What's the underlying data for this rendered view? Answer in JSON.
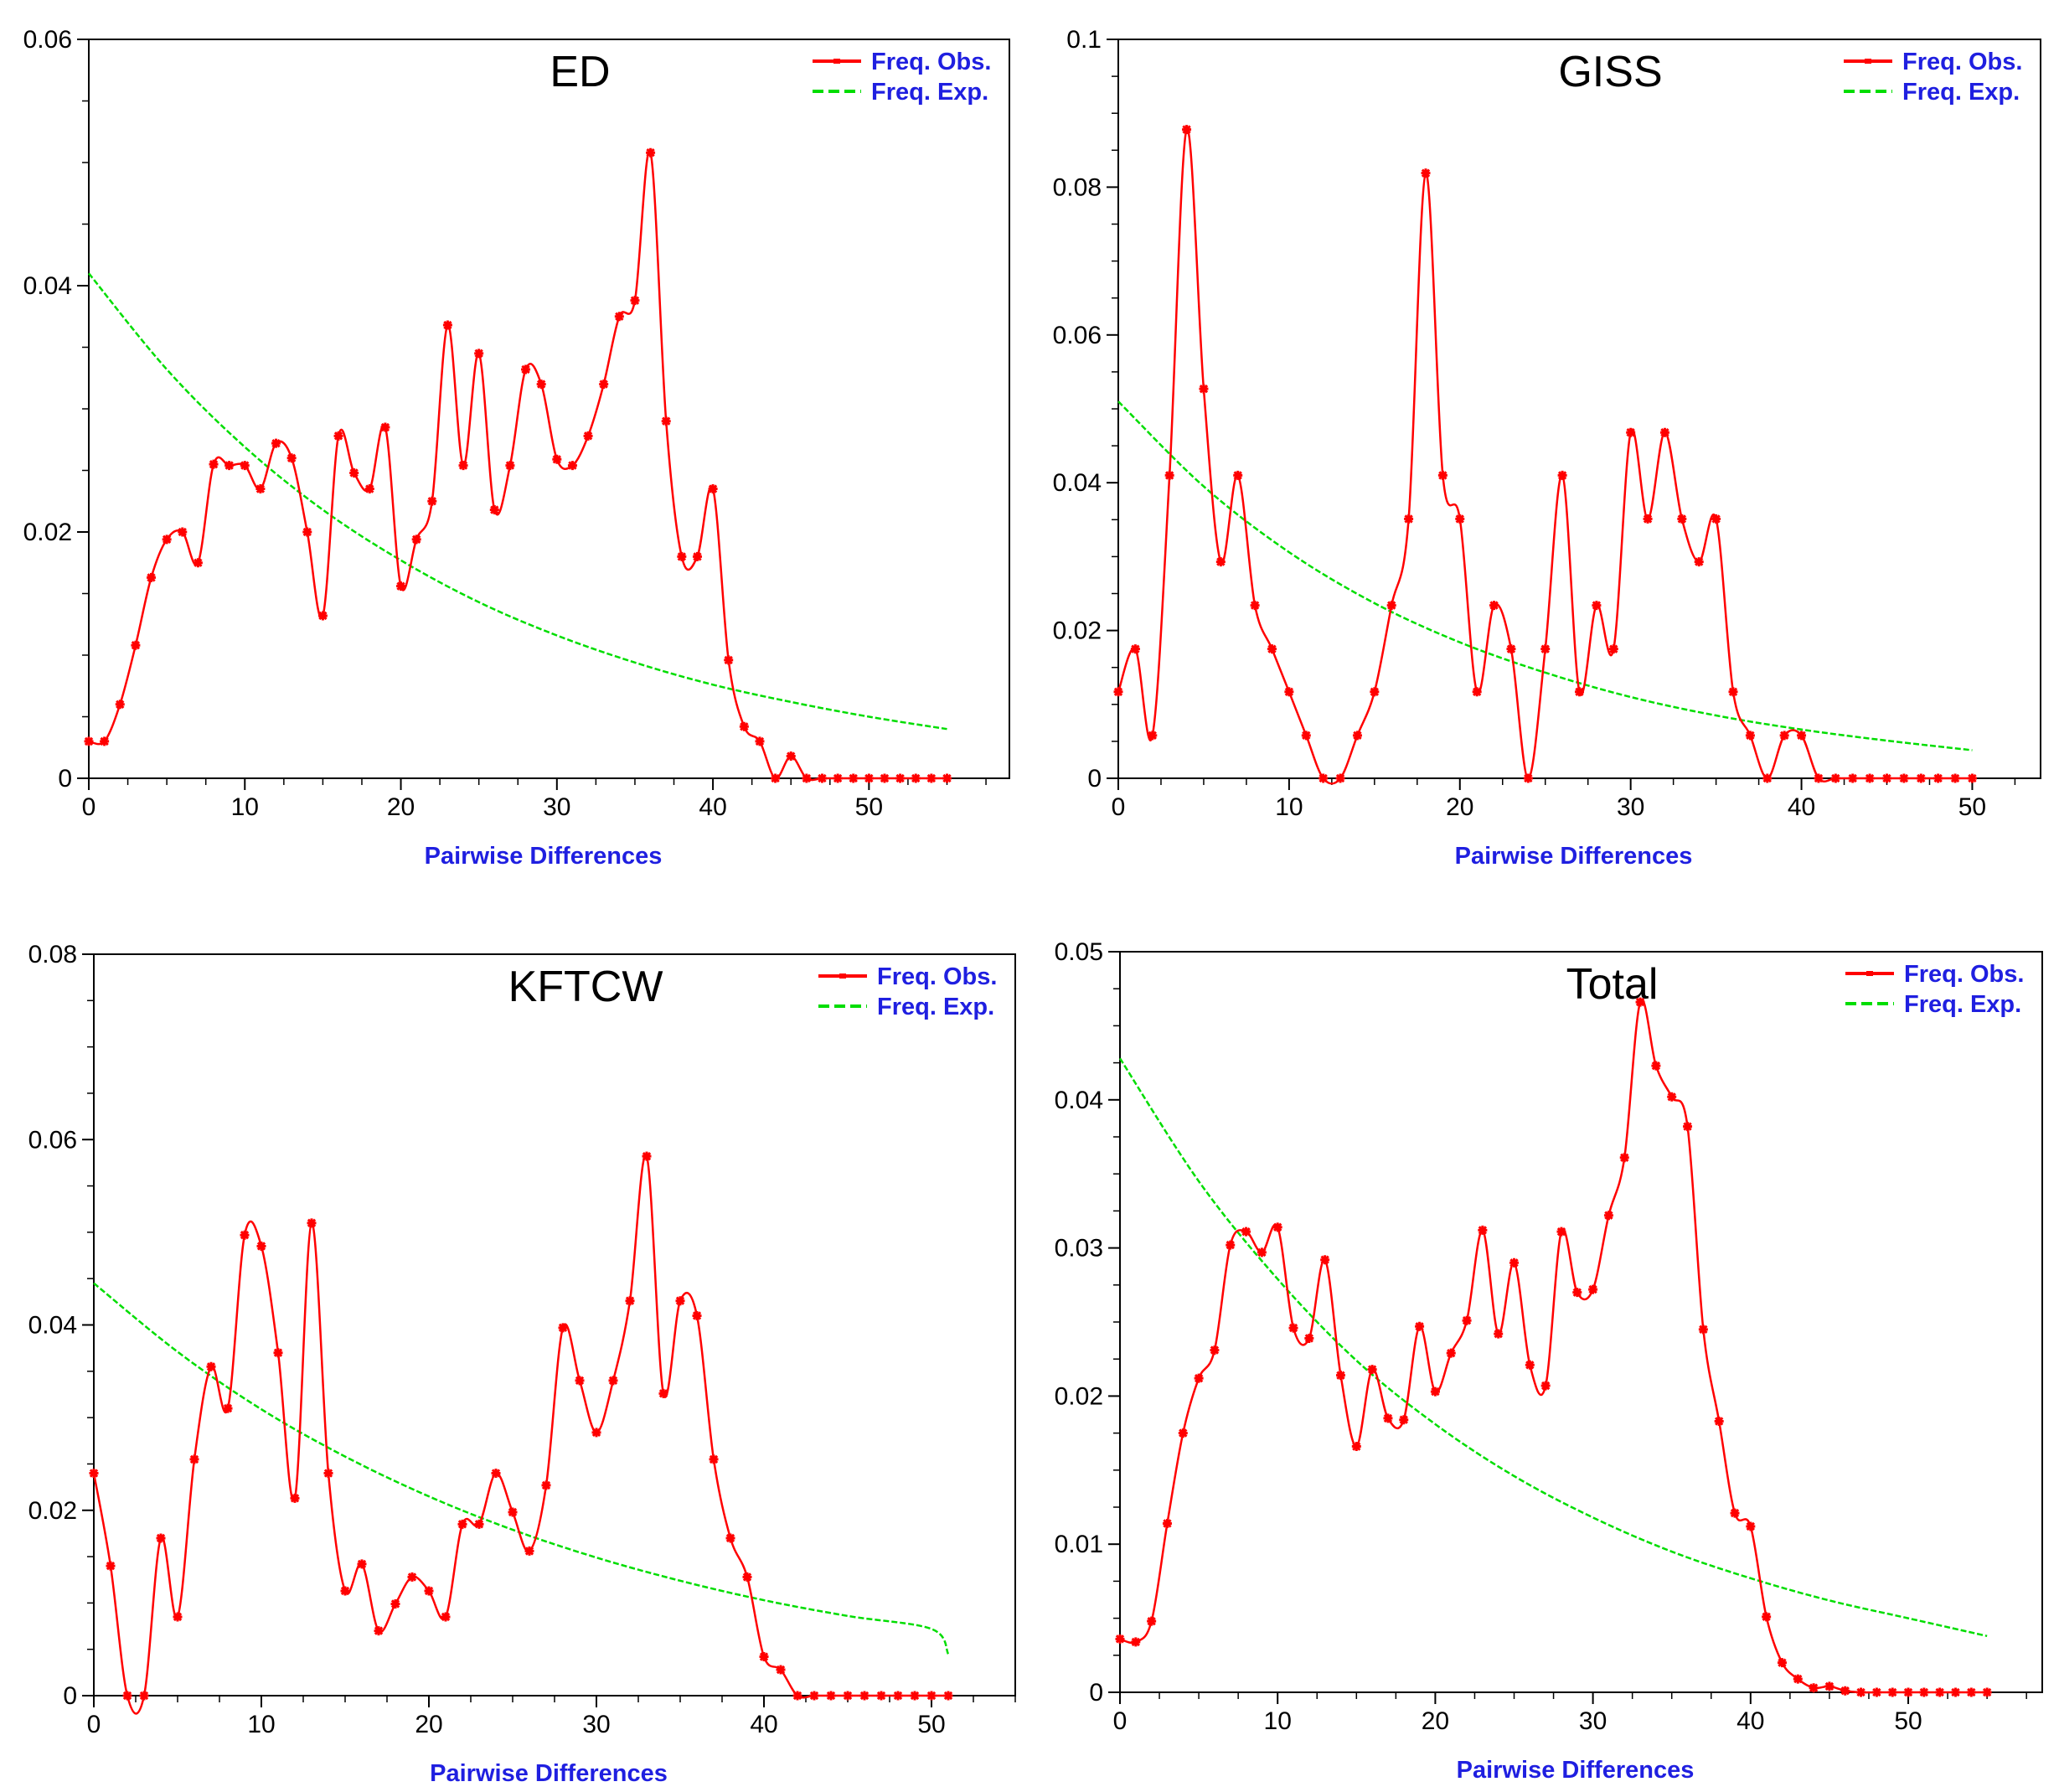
{
  "colors": {
    "observed": "#ff0000",
    "expected": "#00dd00",
    "axis_label": "#1f1fe0",
    "legend_text": "#1f1fe0",
    "axes": "#000000"
  },
  "chart_data": [
    {
      "type": "line",
      "title": "ED",
      "xlabel": "Pairwise Differences",
      "ylabel": "",
      "xlim": [
        0,
        59
      ],
      "ylim": [
        0,
        0.06
      ],
      "xticks": [
        0,
        10,
        20,
        30,
        40,
        50
      ],
      "xtick_labels": [
        "0",
        "10",
        "20",
        "30",
        "40",
        "50"
      ],
      "yticks": [
        0,
        0.02,
        0.04,
        0.06
      ],
      "ytick_labels": [
        "0",
        "0.02",
        "0.04",
        "0.06"
      ],
      "legend": [
        "Freq. Obs.",
        "Freq. Exp."
      ],
      "legend_position": "top-right",
      "series": [
        {
          "name": "Freq. Obs.",
          "x": [
            0,
            1,
            2,
            3,
            4,
            5,
            6,
            7,
            8,
            9,
            10,
            11,
            12,
            13,
            14,
            15,
            16,
            17,
            18,
            19,
            20,
            21,
            22,
            23,
            24,
            25,
            26,
            27,
            28,
            29,
            30,
            31,
            32,
            33,
            34,
            35,
            36,
            37,
            38,
            39,
            40,
            41,
            42,
            43,
            44,
            45,
            46,
            47,
            48,
            49,
            50,
            51,
            52,
            53,
            54,
            55
          ],
          "y": [
            0.003,
            0.003,
            0.006,
            0.0108,
            0.0163,
            0.0194,
            0.02,
            0.0175,
            0.0255,
            0.0254,
            0.0254,
            0.0235,
            0.0272,
            0.026,
            0.02,
            0.0132,
            0.0278,
            0.0248,
            0.0235,
            0.0285,
            0.0156,
            0.0194,
            0.0225,
            0.0368,
            0.0254,
            0.0345,
            0.0218,
            0.0254,
            0.0332,
            0.032,
            0.0259,
            0.0254,
            0.0278,
            0.032,
            0.0375,
            0.0388,
            0.0508,
            0.029,
            0.018,
            0.018,
            0.0235,
            0.0096,
            0.0042,
            0.003,
            0,
            0.0018,
            0,
            0,
            0,
            0,
            0,
            0,
            0,
            0,
            0,
            0
          ]
        },
        {
          "name": "Freq. Exp.",
          "x": [
            0,
            5,
            10,
            15,
            20,
            25,
            30,
            35,
            40,
            45,
            50,
            55
          ],
          "y": [
            0.041,
            0.0332,
            0.0269,
            0.0218,
            0.0177,
            0.0143,
            0.0116,
            0.0094,
            0.0076,
            0.0062,
            0.005,
            0.004
          ]
        }
      ]
    },
    {
      "type": "line",
      "title": "GISS",
      "xlabel": "Pairwise Differences",
      "ylabel": "",
      "xlim": [
        0,
        54
      ],
      "ylim": [
        0,
        0.1
      ],
      "xticks": [
        0,
        10,
        20,
        30,
        40,
        50
      ],
      "xtick_labels": [
        "0",
        "10",
        "20",
        "30",
        "40",
        "50"
      ],
      "yticks": [
        0,
        0.02,
        0.04,
        0.06,
        0.08,
        0.1
      ],
      "ytick_labels": [
        "0",
        "0.02",
        "0.04",
        "0.06",
        "0.08",
        "0.1"
      ],
      "legend": [
        "Freq. Obs.",
        "Freq. Exp."
      ],
      "legend_position": "top-right",
      "series": [
        {
          "name": "Freq. Obs.",
          "x": [
            0,
            1,
            2,
            3,
            4,
            5,
            6,
            7,
            8,
            9,
            10,
            11,
            12,
            13,
            14,
            15,
            16,
            17,
            18,
            19,
            20,
            21,
            22,
            23,
            24,
            25,
            26,
            27,
            28,
            29,
            30,
            31,
            32,
            33,
            34,
            35,
            36,
            37,
            38,
            39,
            40,
            41,
            42,
            43,
            44,
            45,
            46,
            47,
            48,
            49,
            50
          ],
          "y": [
            0.0117,
            0.0175,
            0.0058,
            0.041,
            0.0878,
            0.0527,
            0.0293,
            0.041,
            0.0234,
            0.0175,
            0.0117,
            0.0058,
            0,
            0,
            0.0058,
            0.0117,
            0.0234,
            0.0351,
            0.0819,
            0.041,
            0.0351,
            0.0117,
            0.0234,
            0.0175,
            0,
            0.0175,
            0.041,
            0.0117,
            0.0234,
            0.0175,
            0.0468,
            0.0351,
            0.0468,
            0.0351,
            0.0293,
            0.0351,
            0.0117,
            0.0058,
            0,
            0.0058,
            0.0058,
            0,
            0,
            0,
            0,
            0,
            0,
            0,
            0,
            0,
            0
          ]
        },
        {
          "name": "Freq. Exp.",
          "x": [
            0,
            5,
            10,
            15,
            20,
            25,
            30,
            35,
            40,
            45,
            50
          ],
          "y": [
            0.051,
            0.0395,
            0.0306,
            0.0237,
            0.0184,
            0.0143,
            0.011,
            0.0085,
            0.0066,
            0.0051,
            0.0038
          ]
        }
      ]
    },
    {
      "type": "line",
      "title": "KFTCW",
      "xlabel": "Pairwise Differences",
      "ylabel": "",
      "xlim": [
        0,
        55
      ],
      "ylim": [
        0,
        0.08
      ],
      "xticks": [
        0,
        10,
        20,
        30,
        40,
        50
      ],
      "xtick_labels": [
        "0",
        "10",
        "20",
        "30",
        "40",
        "50"
      ],
      "yticks": [
        0,
        0.02,
        0.04,
        0.06,
        0.08
      ],
      "ytick_labels": [
        "0",
        "0.02",
        "0.04",
        "0.06",
        "0.08"
      ],
      "legend": [
        "Freq. Obs.",
        "Freq. Exp."
      ],
      "legend_position": "top-right",
      "series": [
        {
          "name": "Freq. Obs.",
          "x": [
            0,
            1,
            2,
            3,
            4,
            5,
            6,
            7,
            8,
            9,
            10,
            11,
            12,
            13,
            14,
            15,
            16,
            17,
            18,
            19,
            20,
            21,
            22,
            23,
            24,
            25,
            26,
            27,
            28,
            29,
            30,
            31,
            32,
            33,
            34,
            35,
            36,
            37,
            38,
            39,
            40,
            41,
            42,
            43,
            44,
            45,
            46,
            47,
            48,
            49,
            50,
            51
          ],
          "y": [
            0.024,
            0.014,
            0,
            0,
            0.017,
            0.0085,
            0.0255,
            0.0355,
            0.031,
            0.0497,
            0.0485,
            0.037,
            0.0213,
            0.051,
            0.024,
            0.0113,
            0.0142,
            0.007,
            0.0099,
            0.0128,
            0.0113,
            0.0085,
            0.0185,
            0.0185,
            0.024,
            0.0198,
            0.0156,
            0.0227,
            0.0397,
            0.034,
            0.0284,
            0.034,
            0.0426,
            0.0582,
            0.0326,
            0.0426,
            0.041,
            0.0255,
            0.017,
            0.0128,
            0.0042,
            0.0028,
            0,
            0,
            0,
            0,
            0,
            0,
            0,
            0,
            0,
            0
          ]
        },
        {
          "name": "Freq. Exp.",
          "x": [
            0,
            5,
            10,
            15,
            20,
            25,
            30,
            35,
            40,
            45,
            50,
            51
          ],
          "y": [
            0.0445,
            0.0371,
            0.0309,
            0.0258,
            0.0215,
            0.0179,
            0.0149,
            0.0124,
            0.0103,
            0.0086,
            0.0072,
            0.0045
          ]
        }
      ]
    },
    {
      "type": "line",
      "title": "Total",
      "xlabel": "Pairwise Differences",
      "ylabel": "",
      "xlim": [
        0,
        58.5
      ],
      "ylim": [
        0,
        0.05
      ],
      "xticks": [
        0,
        10,
        20,
        30,
        40,
        50
      ],
      "xtick_labels": [
        "0",
        "10",
        "20",
        "30",
        "40",
        "50"
      ],
      "yticks": [
        0,
        0.01,
        0.02,
        0.03,
        0.04,
        0.05
      ],
      "ytick_labels": [
        "0",
        "0.01",
        "0.02",
        "0.03",
        "0.04",
        "0.05"
      ],
      "legend": [
        "Freq. Obs.",
        "Freq. Exp."
      ],
      "legend_position": "top-right",
      "series": [
        {
          "name": "Freq. Obs.",
          "x": [
            0,
            1,
            2,
            3,
            4,
            5,
            6,
            7,
            8,
            9,
            10,
            11,
            12,
            13,
            14,
            15,
            16,
            17,
            18,
            19,
            20,
            21,
            22,
            23,
            24,
            25,
            26,
            27,
            28,
            29,
            30,
            31,
            32,
            33,
            34,
            35,
            36,
            37,
            38,
            39,
            40,
            41,
            42,
            43,
            44,
            45,
            46,
            47,
            48,
            49,
            50,
            51,
            52,
            53,
            54,
            55
          ],
          "y": [
            0.0036,
            0.0034,
            0.0048,
            0.0114,
            0.0175,
            0.0212,
            0.0231,
            0.0302,
            0.0311,
            0.0297,
            0.0314,
            0.0246,
            0.0239,
            0.0292,
            0.0214,
            0.0166,
            0.0218,
            0.0185,
            0.0184,
            0.0247,
            0.0203,
            0.0229,
            0.0251,
            0.0312,
            0.0242,
            0.029,
            0.0221,
            0.0207,
            0.0311,
            0.027,
            0.0272,
            0.0322,
            0.0361,
            0.0466,
            0.0423,
            0.0402,
            0.0382,
            0.0245,
            0.0183,
            0.0121,
            0.0112,
            0.0051,
            0.002,
            0.0009,
            0.0003,
            0.0004,
            0.0001,
            0,
            0,
            0,
            0,
            0,
            0,
            0,
            0,
            0
          ]
        },
        {
          "name": "Freq. Exp.",
          "x": [
            0,
            5,
            10,
            15,
            20,
            25,
            30,
            35,
            40,
            45,
            50,
            55
          ],
          "y": [
            0.0428,
            0.0345,
            0.0279,
            0.0224,
            0.0181,
            0.0146,
            0.0118,
            0.0095,
            0.0077,
            0.0062,
            0.005,
            0.0038
          ]
        }
      ]
    }
  ]
}
